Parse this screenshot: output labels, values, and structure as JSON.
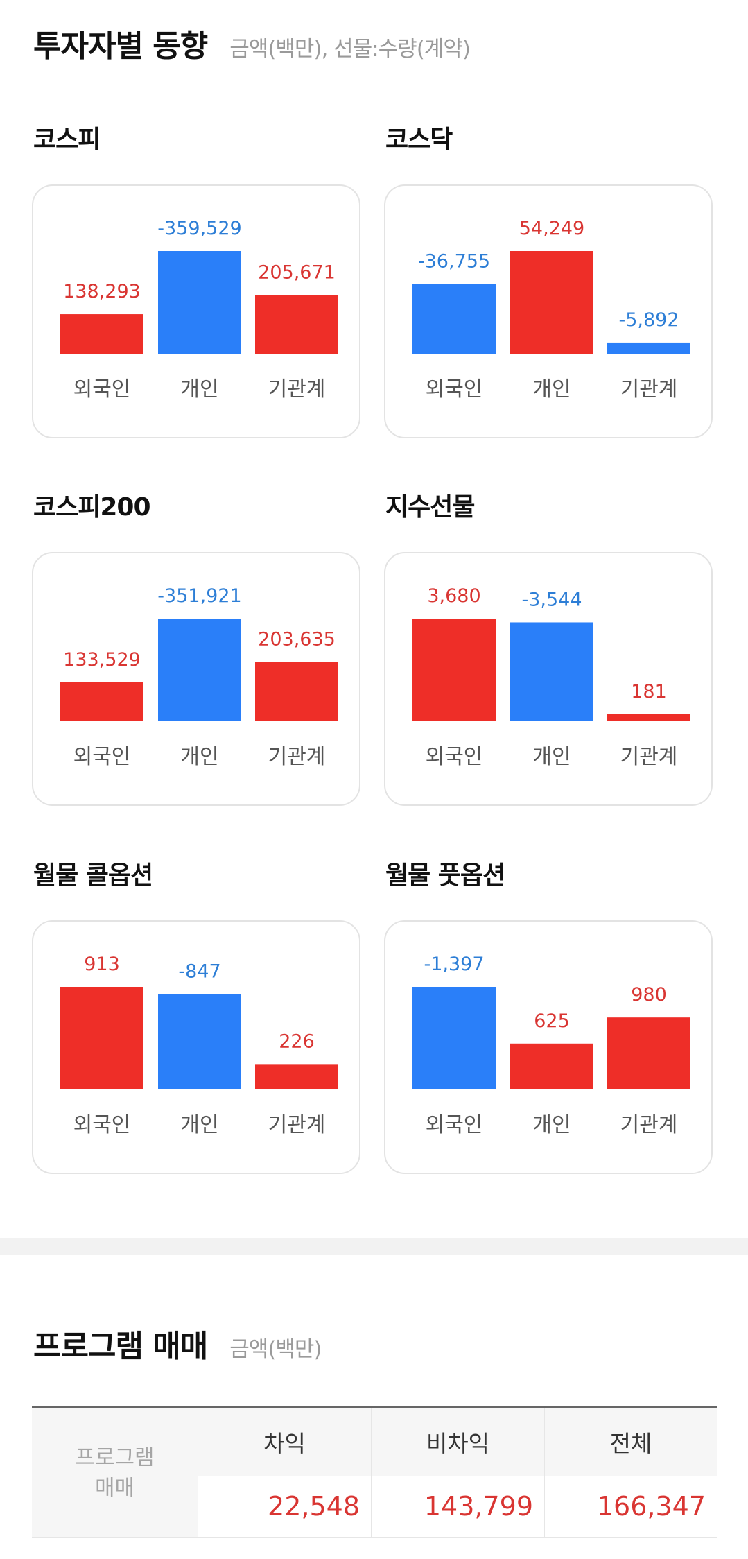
{
  "investor": {
    "title": "투자자별 동향",
    "subtitle": "금액(백만), 선물:수량(계약)"
  },
  "colors": {
    "positive": "#ee2e28",
    "negative": "#2a7ff9",
    "positive_text": "#d93532",
    "negative_text": "#2d7ed6"
  },
  "chart_data": [
    {
      "type": "bar",
      "title": "코스피",
      "categories": [
        "외국인",
        "개인",
        "기관계"
      ],
      "values": [
        138293,
        -359529,
        205671
      ],
      "labels": [
        "138,293",
        "-359,529",
        "205,671"
      ]
    },
    {
      "type": "bar",
      "title": "코스닥",
      "categories": [
        "외국인",
        "개인",
        "기관계"
      ],
      "values": [
        -36755,
        54249,
        -5892
      ],
      "labels": [
        "-36,755",
        "54,249",
        "-5,892"
      ]
    },
    {
      "type": "bar",
      "title": "코스피200",
      "categories": [
        "외국인",
        "개인",
        "기관계"
      ],
      "values": [
        133529,
        -351921,
        203635
      ],
      "labels": [
        "133,529",
        "-351,921",
        "203,635"
      ]
    },
    {
      "type": "bar",
      "title": "지수선물",
      "categories": [
        "외국인",
        "개인",
        "기관계"
      ],
      "values": [
        3680,
        -3544,
        181
      ],
      "labels": [
        "3,680",
        "-3,544",
        "181"
      ]
    },
    {
      "type": "bar",
      "title": "월물 콜옵션",
      "categories": [
        "외국인",
        "개인",
        "기관계"
      ],
      "values": [
        913,
        -847,
        226
      ],
      "labels": [
        "913",
        "-847",
        "226"
      ]
    },
    {
      "type": "bar",
      "title": "월물 풋옵션",
      "categories": [
        "외국인",
        "개인",
        "기관계"
      ],
      "values": [
        -1397,
        625,
        980
      ],
      "labels": [
        "-1,397",
        "625",
        "980"
      ]
    }
  ],
  "program": {
    "title": "프로그램 매매",
    "subtitle": "금액(백만)",
    "row_header_line1": "프로그램",
    "row_header_line2": "매매",
    "columns": [
      "차익",
      "비차익",
      "전체"
    ],
    "values": [
      "22,548",
      "143,799",
      "166,347"
    ]
  }
}
